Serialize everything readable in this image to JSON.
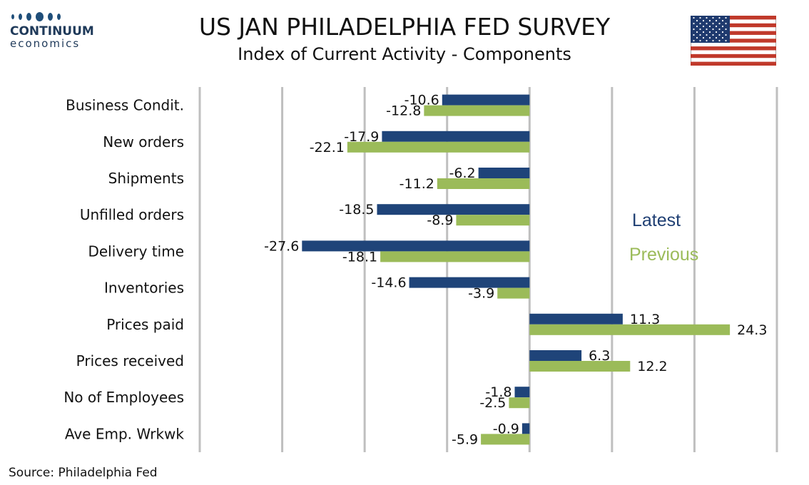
{
  "header": {
    "title": "US JAN PHILADELPHIA FED SURVEY",
    "subtitle": "Index of Current Activity - Components"
  },
  "logo": {
    "name": "CONTINUUM",
    "sub": "economics"
  },
  "source": "Source: Philadelphia Fed",
  "colors": {
    "latest": "#1f4479",
    "previous": "#9bbb59",
    "grid": "#bfbfbf"
  },
  "chart_data": {
    "type": "bar",
    "orientation": "horizontal",
    "title": "US JAN PHILADELPHIA FED SURVEY",
    "subtitle": "Index of Current Activity - Components",
    "categories": [
      "Business Condit.",
      "New orders",
      "Shipments",
      "Unfilled orders",
      "Delivery time",
      "Inventories",
      "Prices paid",
      "Prices received",
      "No of Employees",
      "Ave Emp. Wrkwk"
    ],
    "series": [
      {
        "name": "Latest",
        "values": [
          -10.6,
          -17.9,
          -6.2,
          -18.5,
          -27.6,
          -14.6,
          11.3,
          6.3,
          -1.8,
          -0.9
        ]
      },
      {
        "name": "Previous",
        "values": [
          -12.8,
          -22.1,
          -11.2,
          -8.9,
          -18.1,
          -3.9,
          24.3,
          12.2,
          -2.5,
          -5.9
        ]
      }
    ],
    "xlim": [
      -40,
      30
    ],
    "grid": true,
    "legend": "right"
  }
}
